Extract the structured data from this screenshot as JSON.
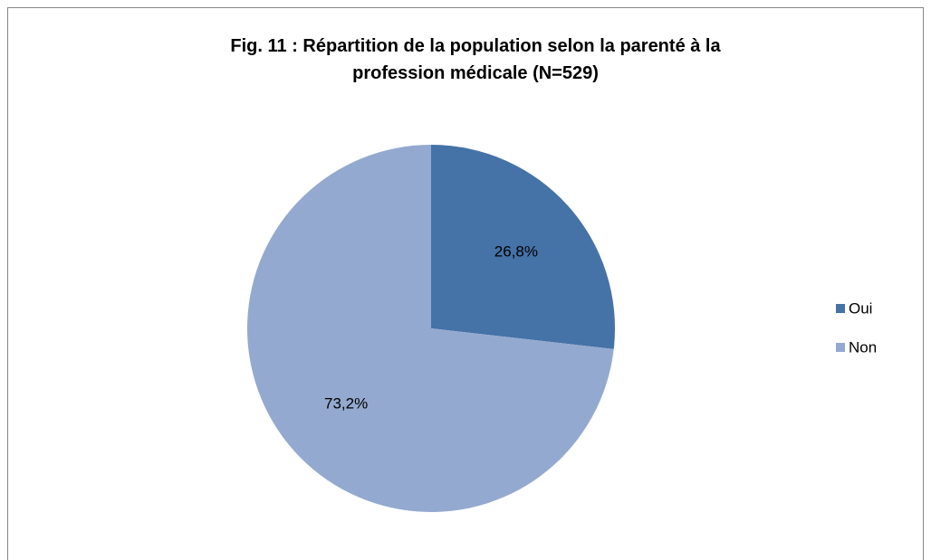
{
  "chart_data": {
    "type": "pie",
    "title": "Fig. 11 : Répartition de la population selon la parenté à la profession médicale (N=529)",
    "categories": [
      "Oui",
      "Non"
    ],
    "values": [
      26.8,
      73.2
    ],
    "value_labels": [
      "26,8%",
      "73,2%"
    ],
    "colors": [
      "#4572a7",
      "#94a9cf"
    ],
    "legend": "right"
  }
}
